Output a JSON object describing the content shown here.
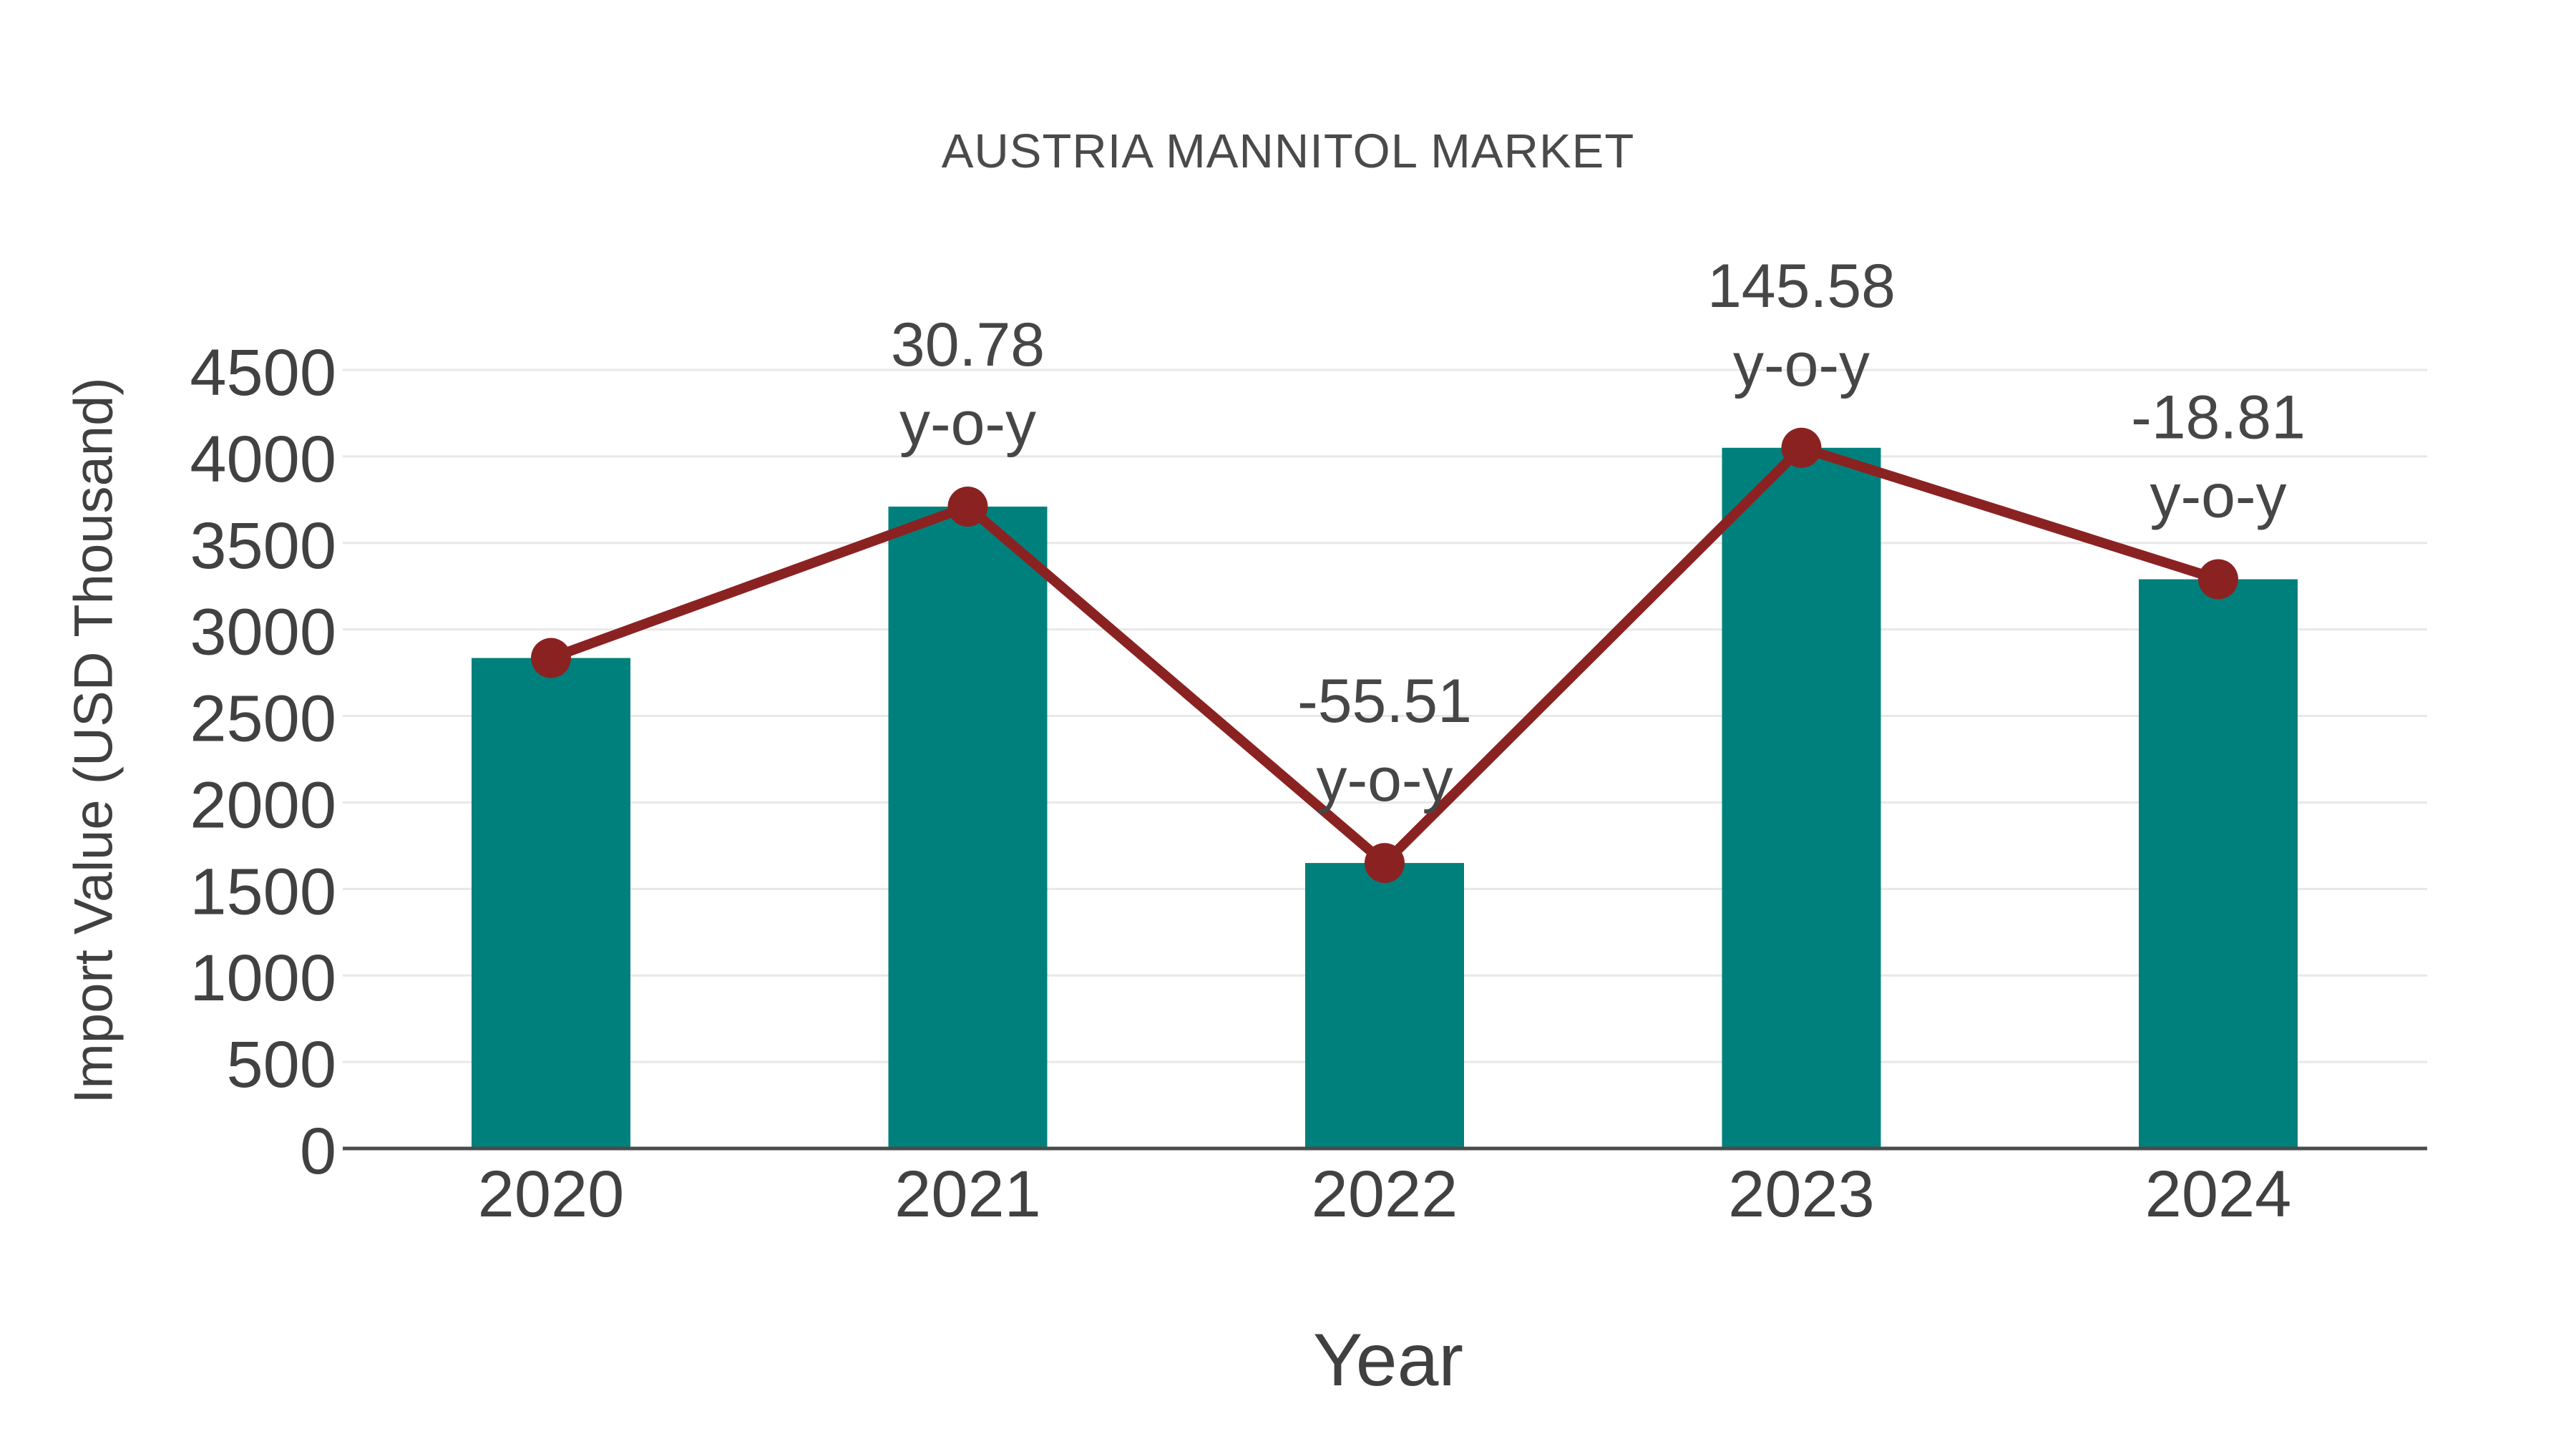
{
  "chart_data": {
    "type": "bar",
    "title": "AUSTRIA MANNITOL MARKET",
    "xlabel": "Year",
    "ylabel": "Import Value (USD Thousand)",
    "categories": [
      "2020",
      "2021",
      "2022",
      "2023",
      "2024"
    ],
    "series": [
      {
        "name": "Import Value (USD Thousand)",
        "type": "bar",
        "values": [
          2835,
          3710,
          1650,
          4050,
          3290
        ]
      },
      {
        "name": "y-o-y growth (%)",
        "type": "line",
        "values": [
          null,
          30.78,
          -55.51,
          145.58,
          -18.81
        ]
      }
    ],
    "annotations": [
      null,
      {
        "line1": "30.78",
        "line2": "y-o-y"
      },
      {
        "line1": "-55.51",
        "line2": "y-o-y"
      },
      {
        "line1": "145.58",
        "line2": "y-o-y"
      },
      {
        "line1": "-18.81",
        "line2": "y-o-y"
      }
    ],
    "ylim": [
      0,
      4500
    ],
    "ytick_step": 500,
    "yticks": [
      0,
      500,
      1000,
      1500,
      2000,
      2500,
      3000,
      3500,
      4000,
      4500
    ],
    "grid": "horizontal",
    "legend": "none",
    "colors": {
      "bar": "#00807C",
      "line": "#8B2222",
      "marker": "#8B2222",
      "grid": "#E8E8E8",
      "axis": "#4B4B4B",
      "tick_text": "#414141",
      "annotation_text": "#464646",
      "title_text": "#4A4A4A",
      "background": "#FFFFFF"
    }
  }
}
